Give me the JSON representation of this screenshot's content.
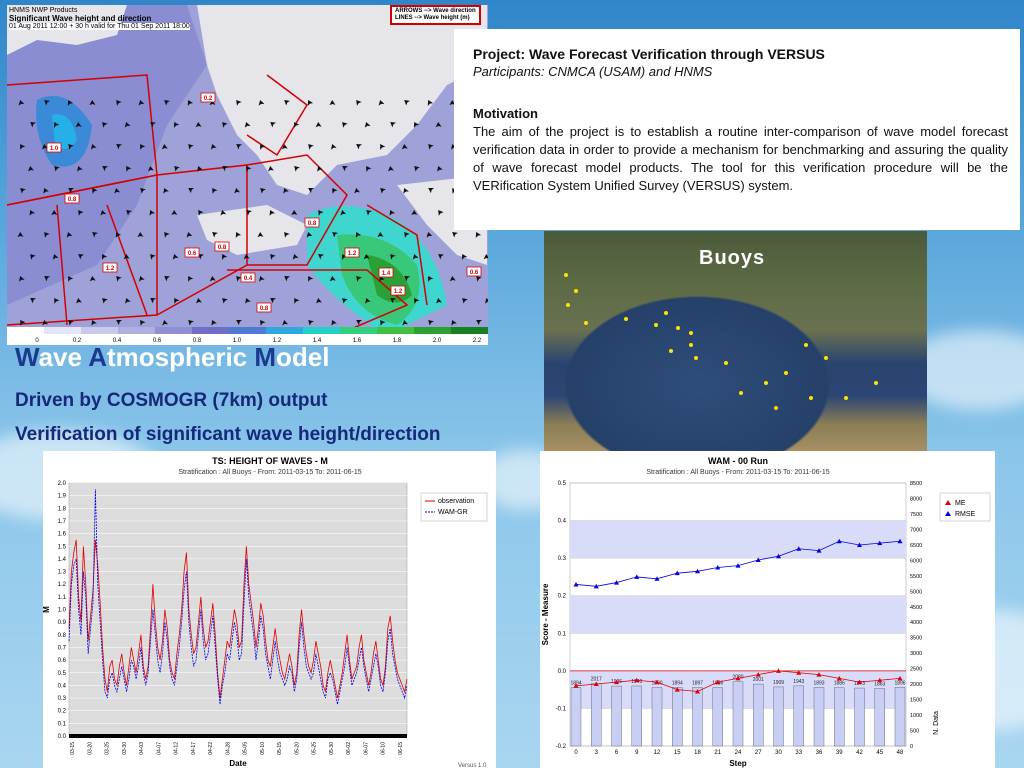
{
  "map": {
    "header_line1": "HNMS NWP Products",
    "header_line2": "Significant Wave height and direction",
    "header_line3": "01 Aug 2011 12:00 + 30 h valid for Thu 01 Sep 2011 18:00",
    "legend_line1": "ARROWS --> Wave direction",
    "legend_line2": "LINES --> Wave height (m)",
    "colorbar_ticks": [
      "0",
      "0.2",
      "0.4",
      "0.6",
      "0.8",
      "1.0",
      "1.2",
      "1.4",
      "1.6",
      "1.8",
      "2.0",
      "2.2"
    ],
    "colorbar_colors": [
      "#ffffff",
      "#e4e4f4",
      "#c9c9ea",
      "#aeaee0",
      "#8f8fd4",
      "#6f6fc8",
      "#4e7ad0",
      "#2fa8e0",
      "#22d0c8",
      "#30d080",
      "#40c040",
      "#2aa030",
      "#188020"
    ],
    "contour_labels": [
      "0.2",
      "1.0",
      "0.8",
      "1.2",
      "0.8",
      "0.4",
      "1.4",
      "1.2",
      "0.6",
      "0.8",
      "0.6",
      "0.8",
      "1.2"
    ]
  },
  "project": {
    "title": "Project: Wave Forecast Verification through VERSUS",
    "participants": "Participants: CNMCA (USAM) and HNMS",
    "motivation_heading": "Motivation",
    "motivation_body": "The aim of the project is to establish a routine inter-comparison of wave model forecast verification data in order to provide a mechanism for benchmarking and assuring the quality of wave forecast model products. The tool for this verification procedure will be the VERification System Unified Survey (VERSUS) system."
  },
  "buoys": {
    "label": "Buoys"
  },
  "headings": {
    "wam": {
      "W": "W",
      "ave": "ave ",
      "A": "A",
      "tmospheric": "tmospheric ",
      "M": "M",
      "odel": "odel"
    },
    "line1": "Driven by COSMOGR (7km) output",
    "line2": "Verification of significant wave height/direction"
  },
  "colors": {
    "observation": "#e00000",
    "wam_gr": "#0000e0",
    "me": "#e00000",
    "rmse": "#0000e0",
    "band": "#d8dcf8",
    "bars": "#c8cef4"
  },
  "chart_data": [
    {
      "type": "line",
      "title": "TS: HEIGHT OF WAVES  - M",
      "subtitle": "Stratification : All Buoys - From: 2011-03-15 To: 2011-06-15",
      "xlabel": "Date",
      "ylabel": "M",
      "footer": "Versus 1.0",
      "ylim": [
        0.0,
        2.0
      ],
      "yticks": [
        "0.0",
        "0.1",
        "0.2",
        "0.3",
        "0.4",
        "0.5",
        "0.6",
        "0.7",
        "0.8",
        "0.9",
        "1.0",
        "1.1",
        "1.2",
        "1.3",
        "1.4",
        "1.5",
        "1.6",
        "1.7",
        "1.8",
        "1.9",
        "2.0"
      ],
      "xticks": [
        "03-15",
        "03-20",
        "03-25",
        "03-30",
        "04-03",
        "04-07",
        "04-12",
        "04-17",
        "04-22",
        "04-28",
        "05-05",
        "05-10",
        "05-15",
        "05-20",
        "05-25",
        "05-30",
        "06-02",
        "06-07",
        "06-10",
        "06-15"
      ],
      "legend": [
        "observation",
        "WAM-GR"
      ],
      "legend_position": "top-right",
      "series": [
        {
          "name": "observation",
          "values": [
            0.85,
            1.3,
            1.45,
            1.55,
            1.1,
            0.9,
            1.5,
            1.2,
            0.75,
            0.95,
            1.15,
            1.55,
            1.35,
            1.05,
            0.7,
            0.45,
            0.35,
            0.55,
            0.6,
            0.45,
            0.4,
            0.55,
            0.65,
            0.5,
            0.4,
            0.55,
            0.7,
            0.6,
            0.5,
            0.65,
            0.8,
            0.55,
            0.45,
            0.55,
            0.85,
            1.2,
            0.9,
            0.7,
            0.6,
            0.75,
            1.0,
            0.85,
            0.6,
            0.5,
            0.45,
            0.65,
            0.8,
            1.0,
            1.3,
            1.45,
            1.0,
            0.8,
            0.65,
            0.7,
            0.9,
            1.1,
            0.85,
            0.7,
            0.75,
            0.9,
            1.05,
            0.8,
            0.5,
            0.3,
            0.45,
            0.6,
            0.75,
            0.7,
            0.85,
            1.0,
            0.9,
            0.7,
            0.75,
            1.2,
            1.5,
            1.2,
            1.05,
            0.9,
            0.7,
            0.85,
            1.05,
            0.95,
            0.75,
            0.6,
            0.55,
            0.7,
            0.85,
            0.7,
            0.6,
            0.5,
            0.45,
            0.55,
            0.65,
            0.55,
            0.4,
            0.5,
            0.8,
            1.0,
            0.8,
            0.65,
            0.55,
            0.5,
            0.6,
            0.75,
            0.65,
            0.55,
            0.4,
            0.35,
            0.5,
            0.6,
            0.5,
            0.4,
            0.3,
            0.4,
            0.5,
            0.65,
            0.8,
            0.6,
            0.45,
            0.5,
            0.55,
            0.7,
            0.8,
            0.6,
            0.5,
            0.4,
            0.5,
            0.65,
            0.75,
            0.6,
            0.45,
            0.4,
            0.55,
            0.85,
            0.95,
            0.75,
            0.6,
            0.5,
            0.45,
            0.4,
            0.35,
            0.45
          ]
        },
        {
          "name": "WAM-GR",
          "values": [
            0.75,
            1.2,
            1.35,
            1.4,
            1.0,
            0.8,
            1.3,
            1.1,
            0.65,
            0.85,
            1.05,
            1.95,
            1.2,
            0.9,
            0.6,
            0.35,
            0.3,
            0.45,
            0.5,
            0.4,
            0.35,
            0.45,
            0.55,
            0.45,
            0.35,
            0.45,
            0.6,
            0.55,
            0.45,
            0.55,
            0.7,
            0.5,
            0.4,
            0.5,
            0.75,
            1.0,
            0.8,
            0.6,
            0.5,
            0.65,
            0.9,
            0.75,
            0.55,
            0.45,
            0.4,
            0.55,
            0.7,
            0.9,
            1.15,
            1.3,
            0.9,
            0.7,
            0.55,
            0.6,
            0.8,
            1.0,
            0.75,
            0.6,
            0.65,
            0.8,
            0.95,
            0.7,
            0.45,
            0.25,
            0.4,
            0.5,
            0.65,
            0.6,
            0.75,
            0.9,
            0.8,
            0.6,
            0.65,
            1.05,
            1.4,
            1.1,
            0.95,
            0.8,
            0.6,
            0.75,
            0.95,
            0.85,
            0.65,
            0.55,
            0.45,
            0.6,
            0.75,
            0.6,
            0.5,
            0.45,
            0.4,
            0.45,
            0.55,
            0.5,
            0.35,
            0.45,
            0.7,
            0.9,
            0.7,
            0.55,
            0.5,
            0.45,
            0.5,
            0.65,
            0.55,
            0.45,
            0.35,
            0.3,
            0.45,
            0.5,
            0.45,
            0.35,
            0.25,
            0.35,
            0.45,
            0.55,
            0.7,
            0.55,
            0.4,
            0.45,
            0.5,
            0.6,
            0.7,
            0.55,
            0.45,
            0.35,
            0.45,
            0.55,
            0.65,
            0.55,
            0.4,
            0.35,
            0.5,
            0.75,
            0.85,
            0.65,
            0.55,
            0.45,
            0.4,
            0.35,
            0.3,
            0.4
          ]
        }
      ]
    },
    {
      "type": "line",
      "title": "WAM - 00 Run",
      "subtitle": "Stratification : All Buoys - From: 2011-03-15 To: 2011-06-15",
      "xlabel": "Step",
      "ylabel": "Score - Measure",
      "y2label": "N. Data",
      "ylim": [
        -0.2,
        0.5
      ],
      "yticks": [
        "-0.2",
        "-0.1",
        "0.0",
        "0.1",
        "0.2",
        "0.3",
        "0.4",
        "0.5"
      ],
      "y2lim": [
        0,
        8500
      ],
      "y2ticks": [
        "0",
        "500",
        "1000",
        "1500",
        "2000",
        "2500",
        "3000",
        "3500",
        "4000",
        "4500",
        "5000",
        "5500",
        "6000",
        "6500",
        "7000",
        "7500",
        "8000",
        "8500"
      ],
      "x": [
        0,
        3,
        6,
        9,
        12,
        15,
        18,
        21,
        24,
        27,
        30,
        33,
        36,
        39,
        42,
        45,
        48
      ],
      "xticks": [
        "0",
        "3",
        "6",
        "9",
        "12",
        "15",
        "18",
        "21",
        "24",
        "27",
        "30",
        "33",
        "36",
        "39",
        "42",
        "45",
        "48"
      ],
      "legend": [
        "ME",
        "RMSE"
      ],
      "legend_position": "top-right",
      "series": [
        {
          "name": "ME",
          "values": [
            -0.04,
            -0.035,
            -0.03,
            -0.025,
            -0.03,
            -0.05,
            -0.055,
            -0.03,
            -0.02,
            -0.01,
            0.0,
            -0.005,
            -0.01,
            -0.02,
            -0.03,
            -0.025,
            -0.02
          ]
        },
        {
          "name": "RMSE",
          "values": [
            0.23,
            0.225,
            0.235,
            0.25,
            0.245,
            0.26,
            0.265,
            0.275,
            0.28,
            0.295,
            0.305,
            0.325,
            0.32,
            0.345,
            0.335,
            0.34,
            0.345
          ]
        },
        {
          "name": "N. Data",
          "values": [
            1894,
            2017,
            1936,
            1940,
            1890,
            1894,
            1897,
            1886,
            2080,
            2001,
            1909,
            1943,
            1893,
            1886,
            1873,
            1863,
            1896
          ]
        }
      ],
      "bar_labels": [
        "1894",
        "2017",
        "1936",
        "1940",
        "1890",
        "1894",
        "1897",
        "1886",
        "2080",
        "2001",
        "1909",
        "1943",
        "1893",
        "1886",
        "1873",
        "1863",
        "1896"
      ]
    }
  ]
}
